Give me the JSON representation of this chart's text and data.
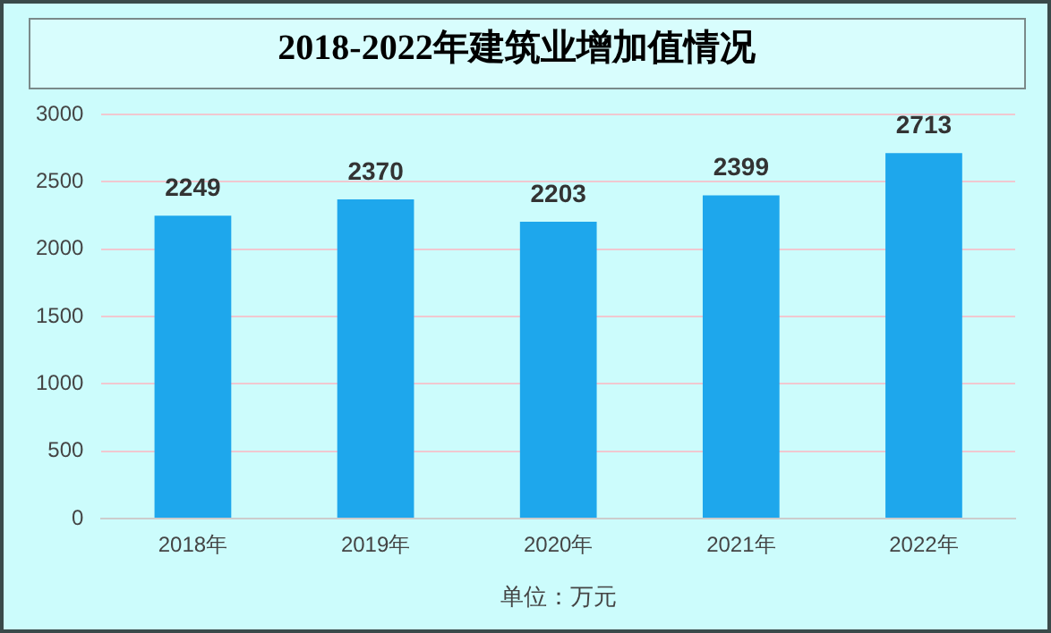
{
  "chart_data": {
    "type": "bar",
    "title": "2018-2022年建筑业增加值情况",
    "xlabel": "单位：万元",
    "categories": [
      "2018年",
      "2019年",
      "2020年",
      "2021年",
      "2022年"
    ],
    "values": [
      2249,
      2370,
      2203,
      2399,
      2713
    ],
    "color": "#1ea7ec",
    "ylim": [
      0,
      3000
    ],
    "yticks": [
      0,
      500,
      1000,
      1500,
      2000,
      2500,
      3000
    ],
    "grid": "y",
    "data_labels": true,
    "legend": false
  }
}
